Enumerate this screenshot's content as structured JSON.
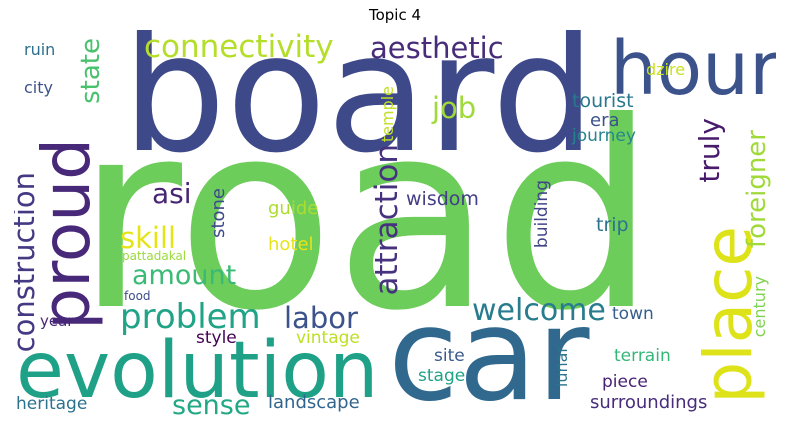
{
  "title": "Topic 4",
  "words": {
    "road": "road",
    "board": "board",
    "car": "car",
    "evolution": "evolution",
    "hour": "hour",
    "place": "place",
    "proud": "proud",
    "connectivity": "connectivity",
    "aesthetic": "aesthetic",
    "problem": "problem",
    "construction": "construction",
    "attraction": "attraction",
    "welcome": "welcome",
    "foreigner": "foreigner",
    "labor": "labor",
    "skill": "skill",
    "amount": "amount",
    "sense": "sense",
    "truly": "truly",
    "state": "state",
    "job": "job",
    "asi": "asi",
    "wisdom": "wisdom",
    "tourist": "tourist",
    "era": "era",
    "journey": "journey",
    "temple": "temple",
    "trip": "trip",
    "guide": "guide",
    "hotel": "hotel",
    "stone": "stone",
    "building": "building",
    "century": "century",
    "town": "town",
    "terrain": "terrain",
    "piece": "piece",
    "surroundings": "surroundings",
    "lunar": "lunar",
    "site": "site",
    "stage": "stage",
    "landscape": "landscape",
    "vintage": "vintage",
    "style": "style",
    "heritage": "heritage",
    "year": "year",
    "food": "food",
    "pattadakal": "pattadakal",
    "city": "city",
    "ruin": "ruin",
    "dzire": "dzire"
  },
  "colors": {
    "road": "#6ccd5a",
    "board": "#3e4989",
    "car": "#31688e",
    "evolution": "#1fa187",
    "hour": "#3b528b",
    "place": "#dde318",
    "proud": "#482878",
    "connectivity": "#b5de2b",
    "aesthetic": "#472c7a",
    "problem": "#20a386",
    "construction": "#443983",
    "attraction": "#46327e",
    "welcome": "#287c8e",
    "foreigner": "#a0da39",
    "labor": "#3b528b",
    "skill": "#e5e419",
    "amount": "#3aba76",
    "sense": "#22a884",
    "truly": "#481a6c",
    "state": "#4ac16d",
    "job": "#9fda3a",
    "asi": "#482475",
    "wisdom": "#433e85",
    "tourist": "#2a788e",
    "era": "#3b528b",
    "journey": "#25858e",
    "temple": "#c0df25",
    "trip": "#2c728e",
    "guide": "#addc30",
    "hotel": "#e7e419",
    "stone": "#3e4a89",
    "building": "#404688",
    "century": "#7fd34e",
    "town": "#355f8d",
    "terrain": "#35b779",
    "piece": "#482173",
    "surroundings": "#472d7b",
    "lunar": "#2b758e",
    "site": "#38598c",
    "stage": "#1fa287",
    "landscape": "#32658e",
    "vintage": "#bddf26",
    "style": "#440154",
    "heritage": "#2c718e",
    "year": "#482677",
    "food": "#3d4e8a",
    "pattadakal": "#9bd93c",
    "city": "#3b528b",
    "ruin": "#2d708e",
    "dzire": "#cae11f"
  }
}
